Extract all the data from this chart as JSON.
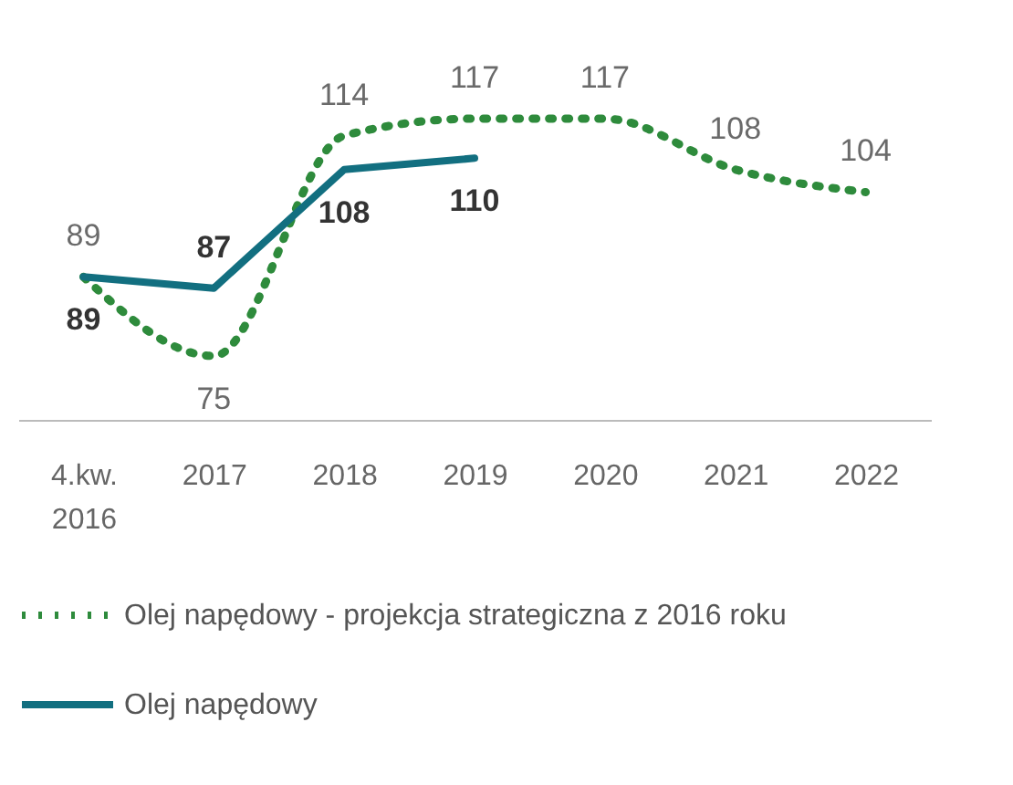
{
  "chart_data": {
    "type": "line",
    "categories": [
      "4.kw.\n2016",
      "2017",
      "2018",
      "2019",
      "2020",
      "2021",
      "2022"
    ],
    "series": [
      {
        "name": "Olej napędowy - projekcja strategiczna z 2016 roku",
        "color": "#2e8b3c",
        "line_style": "dotted",
        "values": [
          89,
          75,
          114,
          117,
          117,
          108,
          104
        ]
      },
      {
        "name": "Olej napędowy",
        "color": "#126f80",
        "line_style": "solid",
        "values": [
          89,
          87,
          108,
          110,
          null,
          null,
          null
        ]
      }
    ],
    "data_labels": true,
    "legend": "bottom",
    "marker": "none",
    "grid": false
  }
}
